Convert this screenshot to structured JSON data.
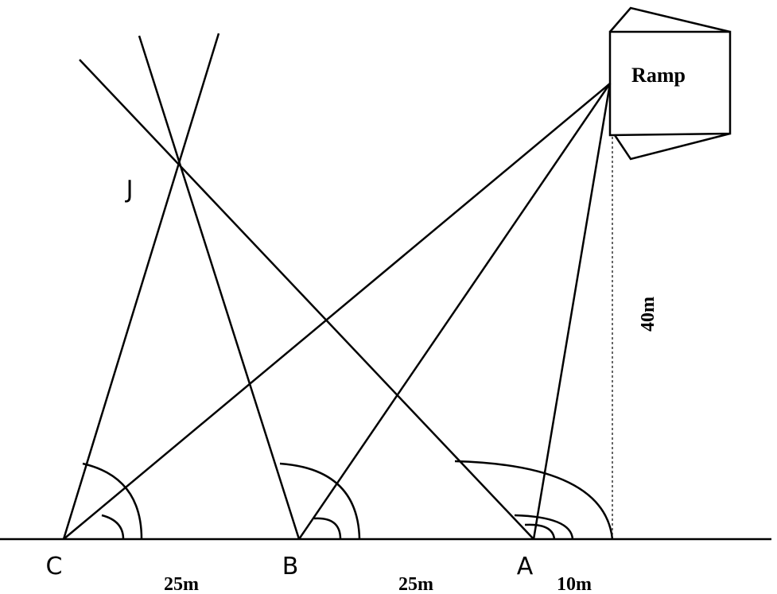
{
  "labels": {
    "ramp": "Ramp",
    "j": "J",
    "height": "40m",
    "c": "C",
    "b": "B",
    "a": "A",
    "dist_cb": "25m",
    "dist_ba": "25m",
    "dist_a": "10m"
  }
}
